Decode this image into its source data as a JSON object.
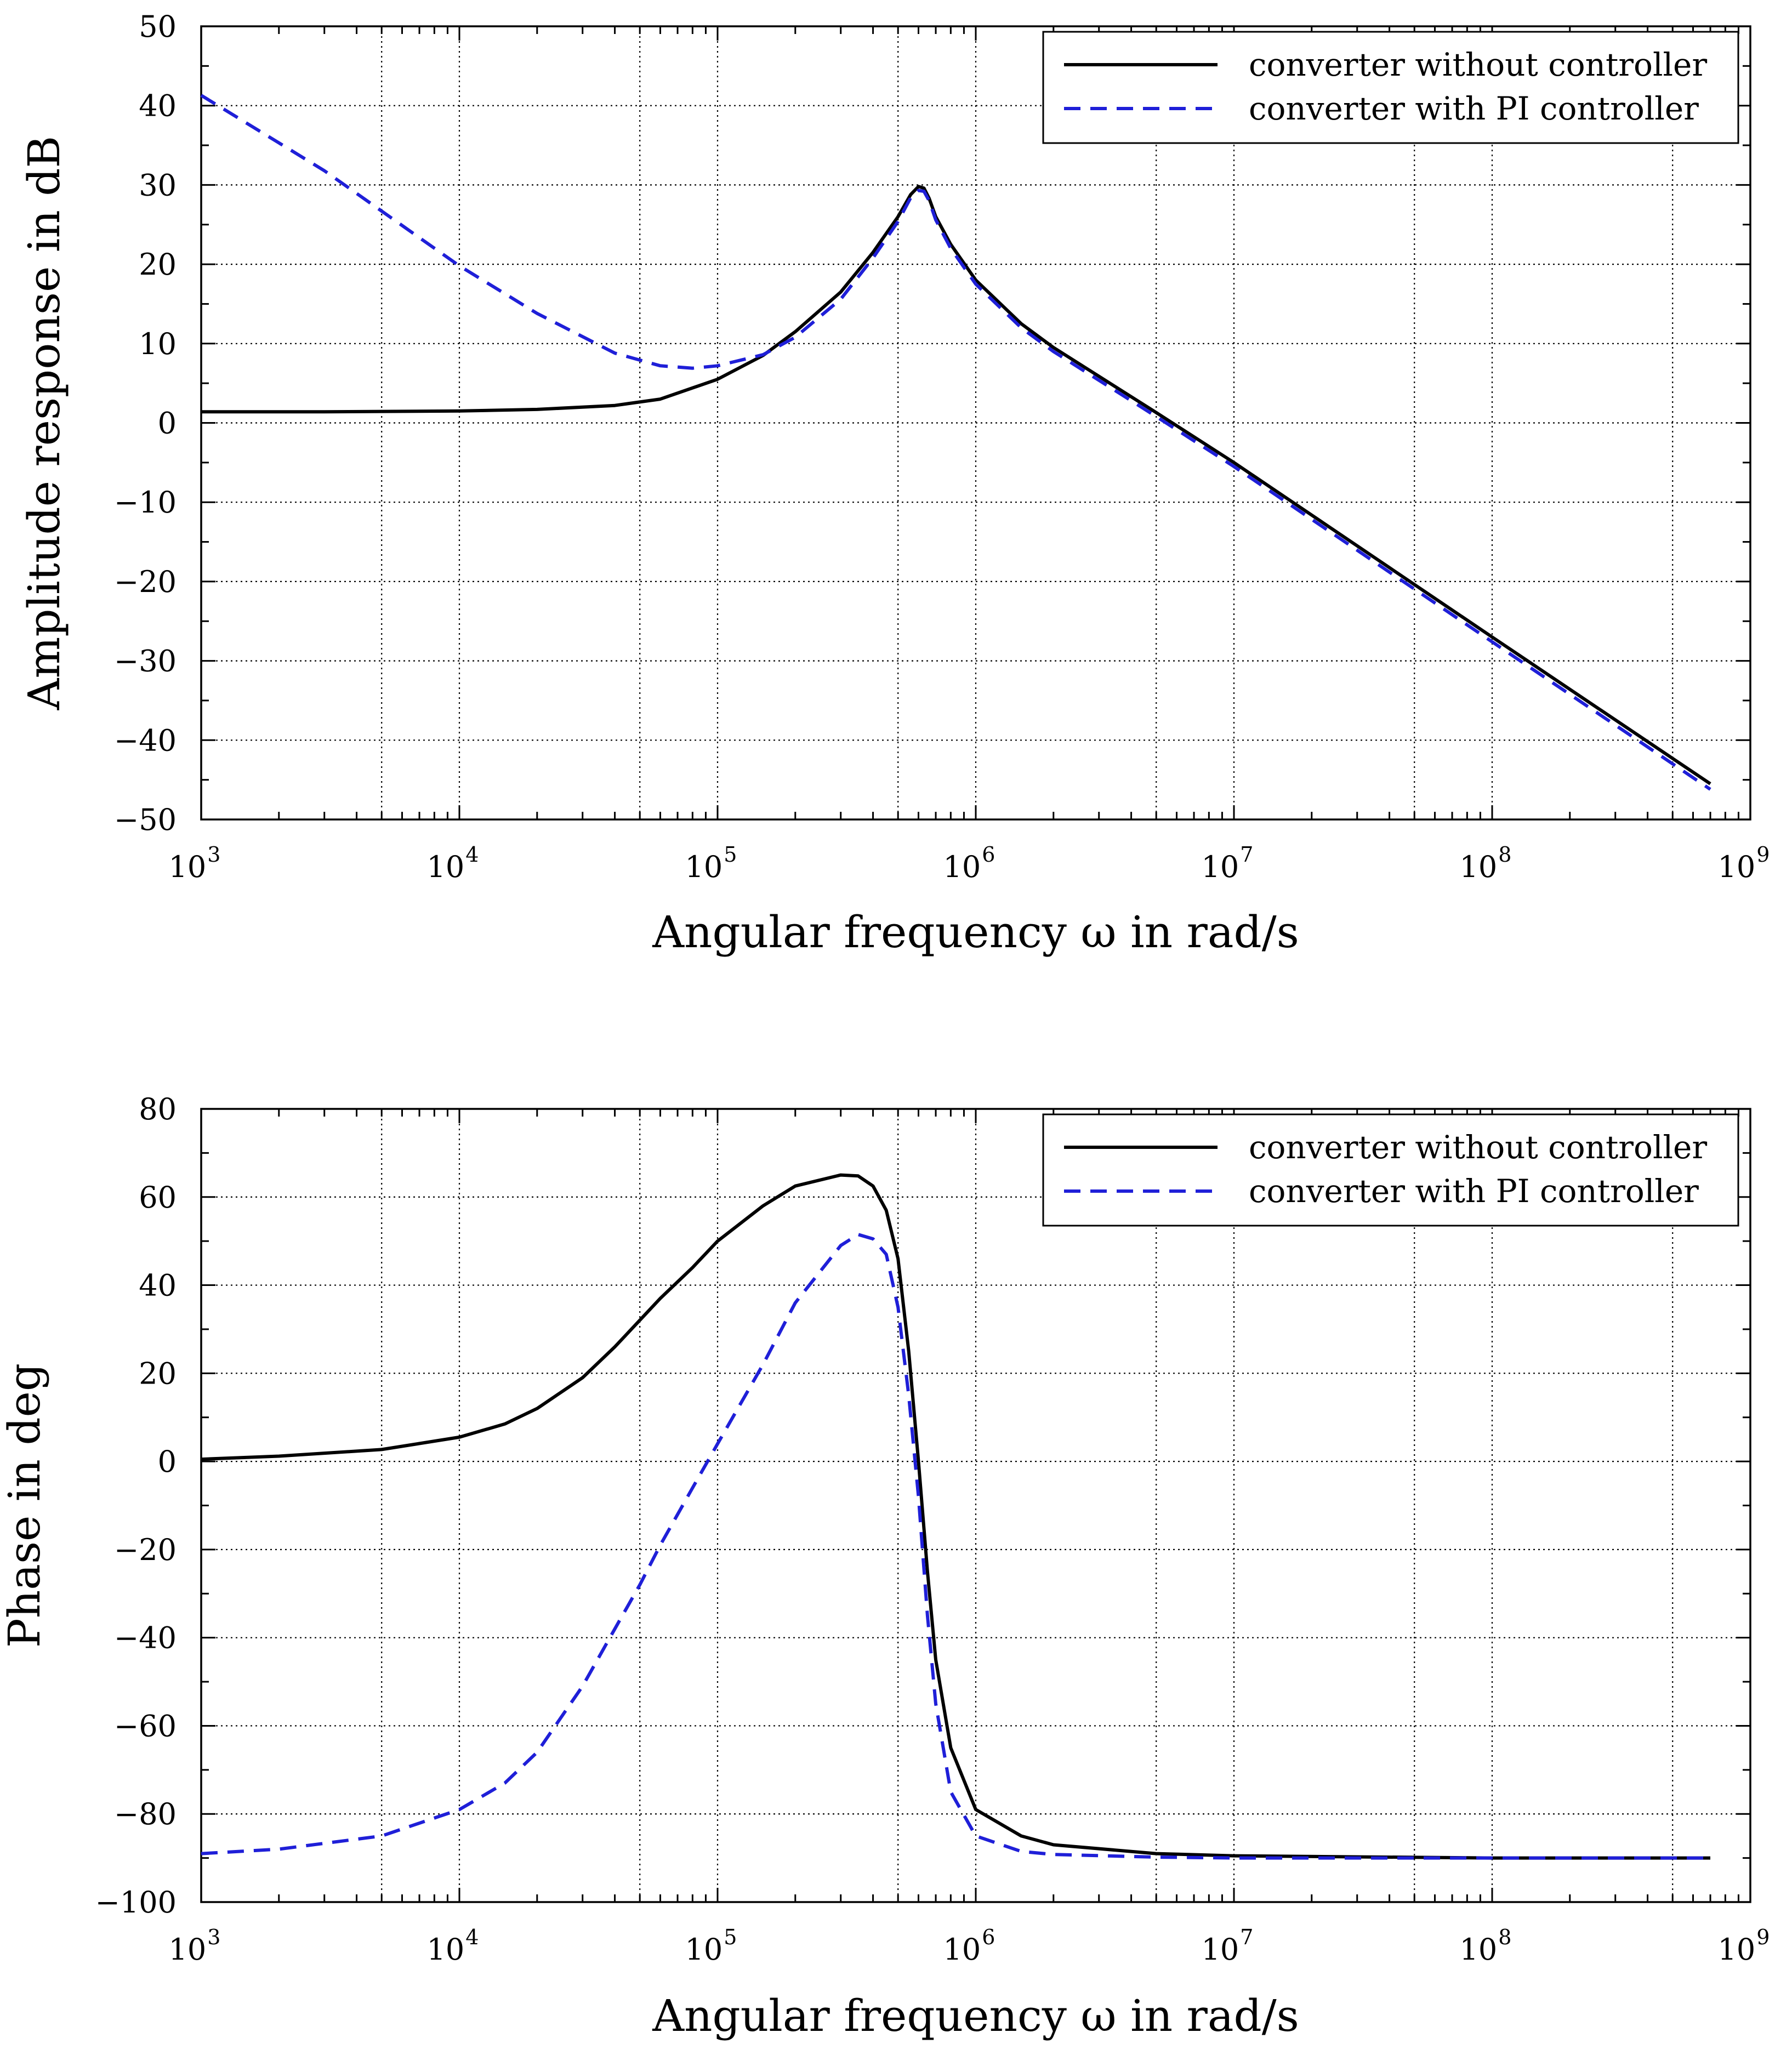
{
  "chart_data": [
    {
      "type": "line",
      "xscale": "log",
      "xlabel": "Angular frequency ω in rad/s",
      "ylabel": "Amplitude response in dB",
      "xlim": [
        1000,
        1000000000
      ],
      "ylim": [
        -50,
        50
      ],
      "yticks": [
        50,
        40,
        30,
        20,
        10,
        0,
        -10,
        -20,
        -30,
        -40,
        -50
      ],
      "ytick_labels": [
        "50",
        "40",
        "30",
        "20",
        "10",
        "0",
        "−10",
        "−20",
        "−30",
        "−40",
        "−50"
      ],
      "xticks": [
        1000,
        10000,
        100000,
        1000000,
        10000000,
        100000000,
        1000000000
      ],
      "xtick_base": "10",
      "xtick_exponents": [
        "3",
        "4",
        "5",
        "6",
        "7",
        "8",
        "9"
      ],
      "grid": true,
      "legend_position": "top-right",
      "series": [
        {
          "name": "converter without controller",
          "color": "#000000",
          "style": "solid",
          "x": [
            1000,
            3000,
            10000,
            20000,
            40000,
            60000,
            100000,
            150000,
            200000,
            300000,
            400000,
            500000,
            560000,
            600000,
            630000,
            660000,
            700000,
            800000,
            1000000,
            1500000,
            2000000,
            5000000,
            10000000,
            100000000,
            700000000
          ],
          "y": [
            1.4,
            1.4,
            1.5,
            1.7,
            2.2,
            3.0,
            5.5,
            8.5,
            11.5,
            16.5,
            21.5,
            26.0,
            28.8,
            29.8,
            29.6,
            28.3,
            26.0,
            22.5,
            18.0,
            12.5,
            9.5,
            1.3,
            -5.0,
            -27.0,
            -45.5
          ]
        },
        {
          "name": "converter with PI controller",
          "color": "#1f1fd8",
          "style": "dashed",
          "x": [
            1000,
            3000,
            10000,
            20000,
            40000,
            60000,
            80000,
            100000,
            150000,
            200000,
            300000,
            400000,
            500000,
            560000,
            600000,
            630000,
            660000,
            700000,
            800000,
            1000000,
            1500000,
            2000000,
            5000000,
            10000000,
            100000000,
            700000000
          ],
          "y": [
            41.3,
            31.8,
            19.8,
            13.8,
            8.8,
            7.2,
            6.9,
            7.2,
            8.6,
            10.8,
            15.6,
            20.8,
            25.4,
            28.4,
            29.3,
            29.2,
            28.0,
            25.6,
            22.0,
            17.5,
            12.0,
            9.0,
            0.8,
            -5.5,
            -27.6,
            -46.2
          ]
        }
      ]
    },
    {
      "type": "line",
      "xscale": "log",
      "xlabel": "Angular frequency ω in rad/s",
      "ylabel": "Phase in deg",
      "xlim": [
        1000,
        1000000000
      ],
      "ylim": [
        -100,
        80
      ],
      "yticks": [
        80,
        60,
        40,
        20,
        0,
        -20,
        -40,
        -60,
        -80,
        -100
      ],
      "ytick_labels": [
        "80",
        "60",
        "40",
        "20",
        "0",
        "−20",
        "−40",
        "−60",
        "−80",
        "−100"
      ],
      "xticks": [
        1000,
        10000,
        100000,
        1000000,
        10000000,
        100000000,
        1000000000
      ],
      "xtick_base": "10",
      "xtick_exponents": [
        "3",
        "4",
        "5",
        "6",
        "7",
        "8",
        "9"
      ],
      "grid": true,
      "legend_position": "top-right",
      "series": [
        {
          "name": "converter without controller",
          "color": "#000000",
          "style": "solid",
          "x": [
            1000,
            2000,
            5000,
            10000,
            15000,
            20000,
            30000,
            40000,
            60000,
            80000,
            100000,
            150000,
            200000,
            300000,
            350000,
            400000,
            450000,
            500000,
            550000,
            600000,
            650000,
            700000,
            800000,
            1000000,
            1500000,
            2000000,
            5000000,
            10000000,
            100000000,
            700000000
          ],
          "y": [
            0.5,
            1.2,
            2.7,
            5.5,
            8.5,
            12,
            19,
            26,
            37,
            44,
            50,
            58,
            62.5,
            65,
            64.8,
            62.5,
            57,
            46,
            25,
            0,
            -25,
            -45,
            -65,
            -79,
            -85,
            -87,
            -89,
            -89.5,
            -90,
            -90
          ]
        },
        {
          "name": "converter with PI controller",
          "color": "#1f1fd8",
          "style": "dashed",
          "x": [
            1000,
            2000,
            5000,
            10000,
            15000,
            20000,
            30000,
            40000,
            50000,
            60000,
            80000,
            100000,
            150000,
            200000,
            300000,
            350000,
            400000,
            450000,
            500000,
            550000,
            600000,
            650000,
            700000,
            800000,
            1000000,
            1500000,
            2000000,
            5000000,
            10000000,
            100000000,
            700000000
          ],
          "y": [
            -89,
            -88,
            -85,
            -79,
            -73,
            -66,
            -51,
            -38,
            -28,
            -19,
            -6,
            4,
            22,
            36,
            49,
            51.5,
            50.5,
            47,
            35,
            15,
            -8,
            -35,
            -55,
            -75,
            -85,
            -88.5,
            -89.2,
            -89.8,
            -90,
            -90,
            -90
          ]
        }
      ]
    }
  ]
}
